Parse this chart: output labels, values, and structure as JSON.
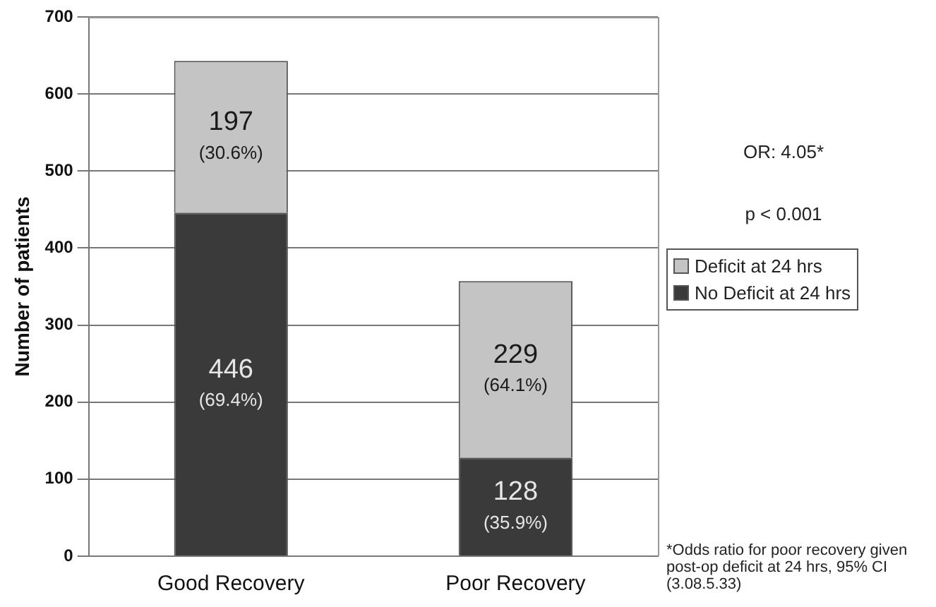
{
  "chart_data": {
    "type": "bar",
    "ylabel": "Number of patients",
    "categories": [
      "Good Recovery",
      "Poor Recovery"
    ],
    "stacked": true,
    "series": [
      {
        "name": "No Deficit at 24 hrs",
        "color": "#3a3a3a",
        "values": [
          446,
          128
        ],
        "value_labels": [
          "446\n(69.4%)",
          "128\n(35.9%)"
        ]
      },
      {
        "name": "Deficit at 24 hrs",
        "color": "#c4c4c4",
        "values": [
          197,
          229
        ],
        "value_labels": [
          "197\n(30.6%)",
          "229\n(64.1%)"
        ]
      }
    ],
    "ylim": [
      0,
      700
    ],
    "yticks": [
      0,
      100,
      200,
      300,
      400,
      500,
      600,
      700
    ],
    "grid": "y",
    "legend": "right",
    "annotations": [
      "OR: 4.05*",
      "p < 0.001",
      "*Odds ratio for poor recovery given post-op deficit at 24 hrs, 95% CI (3.08.5.33)"
    ]
  }
}
